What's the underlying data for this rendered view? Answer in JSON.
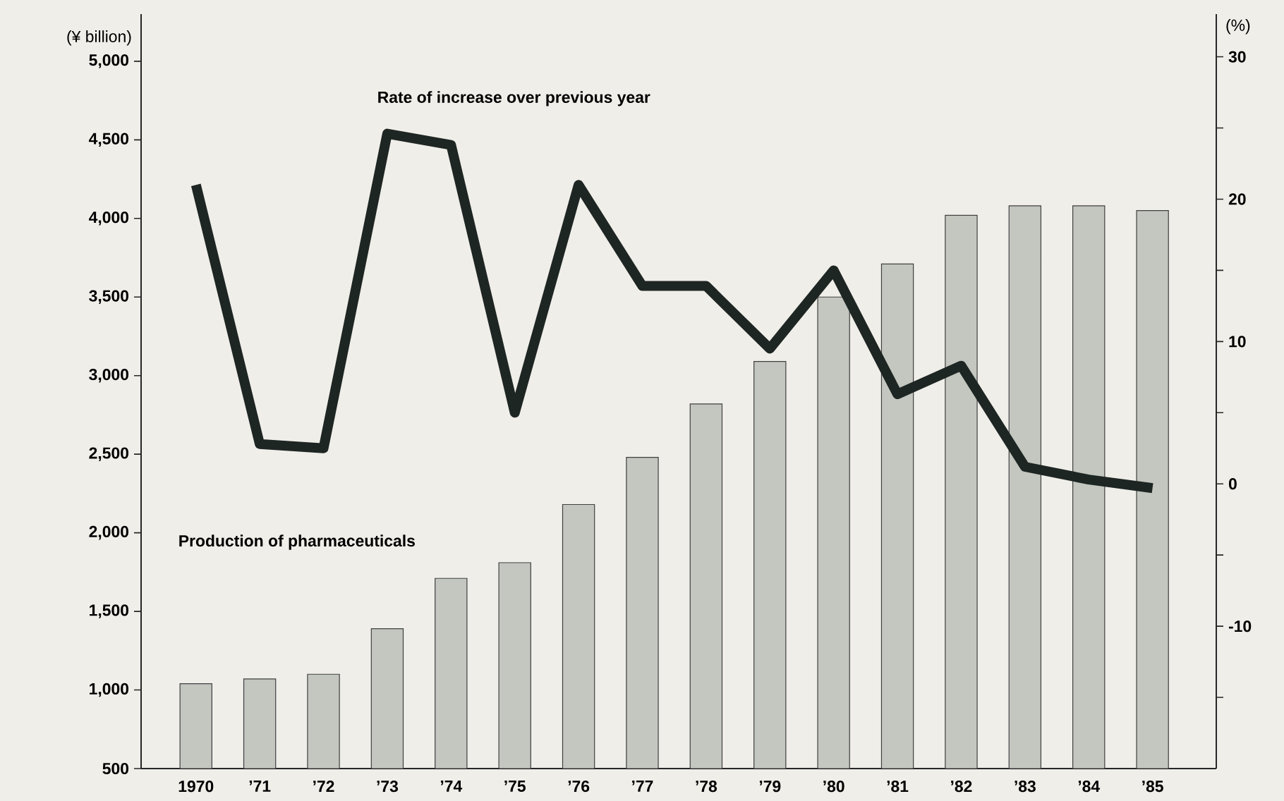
{
  "chart_data": {
    "type": "bar",
    "ylabel": "(¥ billion)",
    "y2label": "(%)",
    "categories": [
      "1970",
      "’71",
      "’72",
      "’73",
      "’74",
      "’75",
      "’76",
      "’77",
      "’78",
      "’79",
      "’80",
      "’81",
      "’82",
      "’83",
      "’84",
      "’85"
    ],
    "series": [
      {
        "name": "Production of pharmaceuticals",
        "color": "#c3c7bf",
        "values": [
          1040,
          1070,
          1100,
          1390,
          1710,
          1810,
          2180,
          2480,
          2820,
          3090,
          3500,
          3710,
          4020,
          4080,
          4080,
          4050
        ]
      },
      {
        "name": "Rate of increase over previous year",
        "type": "line",
        "axis": "y2",
        "color": "#1e2624",
        "values": [
          21,
          2.8,
          2.5,
          24.6,
          23.8,
          5,
          21,
          13.9,
          13.9,
          9.5,
          15,
          6.3,
          8.3,
          1.2,
          0.3,
          -0.3
        ]
      }
    ],
    "ylim": [
      500,
      5300
    ],
    "yticks": [
      {
        "value": 500,
        "label": "500"
      },
      {
        "value": 1000,
        "label": "1,000"
      },
      {
        "value": 1500,
        "label": "1,500"
      },
      {
        "value": 2000,
        "label": "2,000"
      },
      {
        "value": 2500,
        "label": "2,500"
      },
      {
        "value": 3000,
        "label": "3,000"
      },
      {
        "value": 3500,
        "label": "3,500"
      },
      {
        "value": 4000,
        "label": "4,000"
      },
      {
        "value": 4500,
        "label": "4,500"
      },
      {
        "value": 5000,
        "label": "5,000"
      }
    ],
    "y2lim": [
      -20,
      33
    ],
    "y2ticks": [
      {
        "value": -15,
        "label": null
      },
      -10,
      {
        "value": -5,
        "label": null
      },
      0,
      {
        "value": 5,
        "label": null
      },
      10,
      {
        "value": 15,
        "label": null
      },
      20,
      {
        "value": 25,
        "label": null
      },
      30
    ]
  }
}
